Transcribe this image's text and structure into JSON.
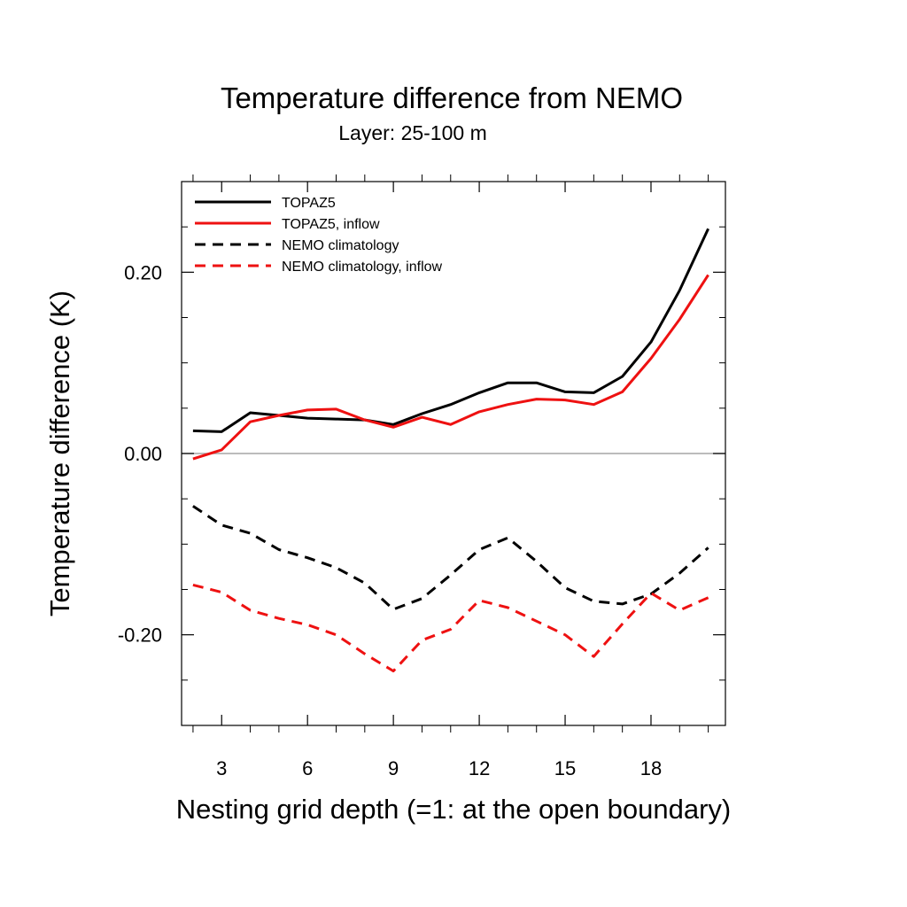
{
  "chart_data": {
    "type": "line",
    "title": "Temperature difference from NEMO",
    "subtitle": "Layer: 25-100 m",
    "xlabel": "Nesting grid depth (=1: at the open boundary)",
    "ylabel": "Temperature difference (K)",
    "xlim": [
      1.6,
      20.6
    ],
    "ylim": [
      -0.3,
      0.3
    ],
    "x_ticks": [
      3,
      6,
      9,
      12,
      15,
      18
    ],
    "x_tick_labels": [
      "3",
      "6",
      "9",
      "12",
      "15",
      "18"
    ],
    "y_ticks": [
      -0.2,
      0.0,
      0.2
    ],
    "y_tick_labels": [
      "-0.20",
      "0.00",
      "0.20"
    ],
    "grid": false,
    "zero_line": true,
    "legend_position": "top-left",
    "x": [
      2,
      3,
      4,
      5,
      6,
      7,
      8,
      9,
      10,
      11,
      12,
      13,
      14,
      15,
      16,
      17,
      18,
      19,
      20
    ],
    "series": [
      {
        "name": "TOPAZ5",
        "color": "#000000",
        "dash": "solid",
        "values": [
          0.025,
          0.024,
          0.045,
          0.042,
          0.039,
          0.038,
          0.037,
          0.032,
          0.044,
          0.054,
          0.067,
          0.078,
          0.078,
          0.068,
          0.067,
          0.085,
          0.123,
          0.18,
          0.248
        ]
      },
      {
        "name": "TOPAZ5, inflow",
        "color": "#ee1111",
        "dash": "solid",
        "values": [
          -0.006,
          0.004,
          0.035,
          0.042,
          0.048,
          0.049,
          0.037,
          0.029,
          0.04,
          0.032,
          0.046,
          0.054,
          0.06,
          0.059,
          0.054,
          0.068,
          0.105,
          0.148,
          0.197
        ]
      },
      {
        "name": "NEMO climatology",
        "color": "#000000",
        "dash": "dashed",
        "values": [
          -0.058,
          -0.079,
          -0.088,
          -0.106,
          -0.115,
          -0.126,
          -0.143,
          -0.172,
          -0.16,
          -0.134,
          -0.106,
          -0.093,
          -0.119,
          -0.148,
          -0.163,
          -0.166,
          -0.155,
          -0.132,
          -0.104
        ]
      },
      {
        "name": "NEMO climatology, inflow",
        "color": "#ee1111",
        "dash": "dashed",
        "values": [
          -0.145,
          -0.153,
          -0.173,
          -0.182,
          -0.189,
          -0.2,
          -0.221,
          -0.24,
          -0.206,
          -0.194,
          -0.162,
          -0.17,
          -0.185,
          -0.2,
          -0.224,
          -0.188,
          -0.154,
          -0.173,
          -0.159
        ]
      }
    ]
  }
}
